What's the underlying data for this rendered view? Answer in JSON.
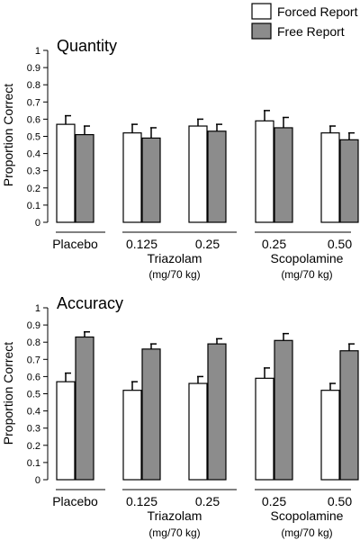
{
  "legend": {
    "items": [
      {
        "label": "Forced Report",
        "color": "#ffffff"
      },
      {
        "label": "Free Report",
        "color": "#8c8c8c"
      }
    ]
  },
  "chart_data": [
    {
      "type": "bar",
      "title": "Quantity",
      "ylabel": "Proportion Correct",
      "ylim": [
        0,
        1
      ],
      "yticks": [
        "0",
        "0.1",
        "0.2",
        "0.3",
        "0.4",
        "0.5",
        "0.6",
        "0.7",
        "0.8",
        "0.9",
        "1"
      ],
      "categories": [
        "Placebo",
        "0.125",
        "0.25",
        "0.25",
        "0.50"
      ],
      "groups": [
        {
          "label": "Triazolam",
          "unit": "(mg/70 kg)"
        },
        {
          "label": "Scopolamine",
          "unit": "(mg/70 kg)"
        }
      ],
      "series": [
        {
          "name": "Forced Report",
          "values": [
            0.57,
            0.52,
            0.56,
            0.59,
            0.52
          ],
          "errors": [
            0.05,
            0.05,
            0.04,
            0.06,
            0.04
          ]
        },
        {
          "name": "Free Report",
          "values": [
            0.51,
            0.49,
            0.53,
            0.55,
            0.48
          ],
          "errors": [
            0.05,
            0.06,
            0.04,
            0.06,
            0.04
          ]
        }
      ]
    },
    {
      "type": "bar",
      "title": "Accuracy",
      "ylabel": "Proportion Correct",
      "ylim": [
        0,
        1
      ],
      "yticks": [
        "0",
        "0.1",
        "0.2",
        "0.3",
        "0.4",
        "0.5",
        "0.6",
        "0.7",
        "0.8",
        "0.9",
        "1"
      ],
      "categories": [
        "Placebo",
        "0.125",
        "0.25",
        "0.25",
        "0.50"
      ],
      "groups": [
        {
          "label": "Triazolam",
          "unit": "(mg/70 kg)"
        },
        {
          "label": "Scopolamine",
          "unit": "(mg/70 kg)"
        }
      ],
      "series": [
        {
          "name": "Forced Report",
          "values": [
            0.57,
            0.52,
            0.56,
            0.59,
            0.52
          ],
          "errors": [
            0.05,
            0.05,
            0.04,
            0.06,
            0.04
          ]
        },
        {
          "name": "Free Report",
          "values": [
            0.83,
            0.76,
            0.79,
            0.81,
            0.75
          ],
          "errors": [
            0.03,
            0.03,
            0.03,
            0.04,
            0.04
          ]
        }
      ]
    }
  ]
}
